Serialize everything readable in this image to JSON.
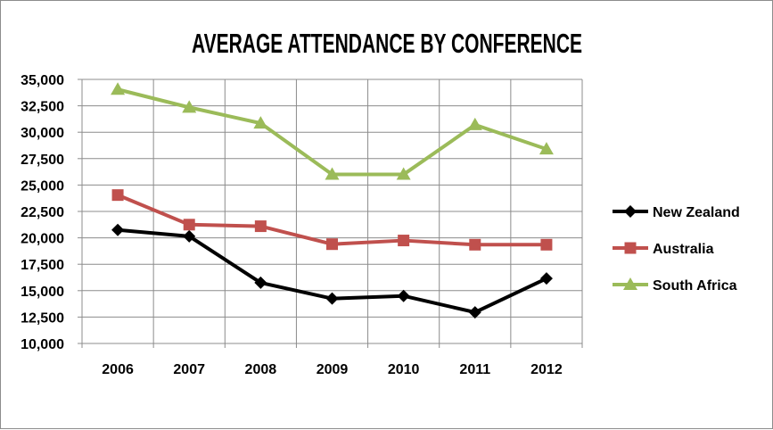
{
  "chart_data": {
    "type": "line",
    "title": "AVERAGE ATTENDANCE BY CONFERENCE",
    "xlabel": "",
    "ylabel": "",
    "categories": [
      "2006",
      "2007",
      "2008",
      "2009",
      "2010",
      "2011",
      "2012"
    ],
    "ylim": [
      10000,
      35000
    ],
    "yticks": [
      "10,000",
      "12,500",
      "15,000",
      "17,500",
      "20,000",
      "22,500",
      "25,000",
      "27,500",
      "30,000",
      "32,500",
      "35,000"
    ],
    "grid": true,
    "legend_position": "right",
    "series": [
      {
        "name": "New Zealand",
        "color": "#000000",
        "marker": "diamond",
        "values": [
          20750,
          20150,
          15750,
          14250,
          14500,
          12950,
          16150
        ]
      },
      {
        "name": "Australia",
        "color": "#c0504d",
        "marker": "square",
        "values": [
          24050,
          21250,
          21100,
          19400,
          19750,
          19350,
          19350
        ]
      },
      {
        "name": "South Africa",
        "color": "#9bbb59",
        "marker": "triangle",
        "values": [
          34050,
          32350,
          30850,
          26000,
          26000,
          30700,
          28400
        ]
      }
    ]
  }
}
